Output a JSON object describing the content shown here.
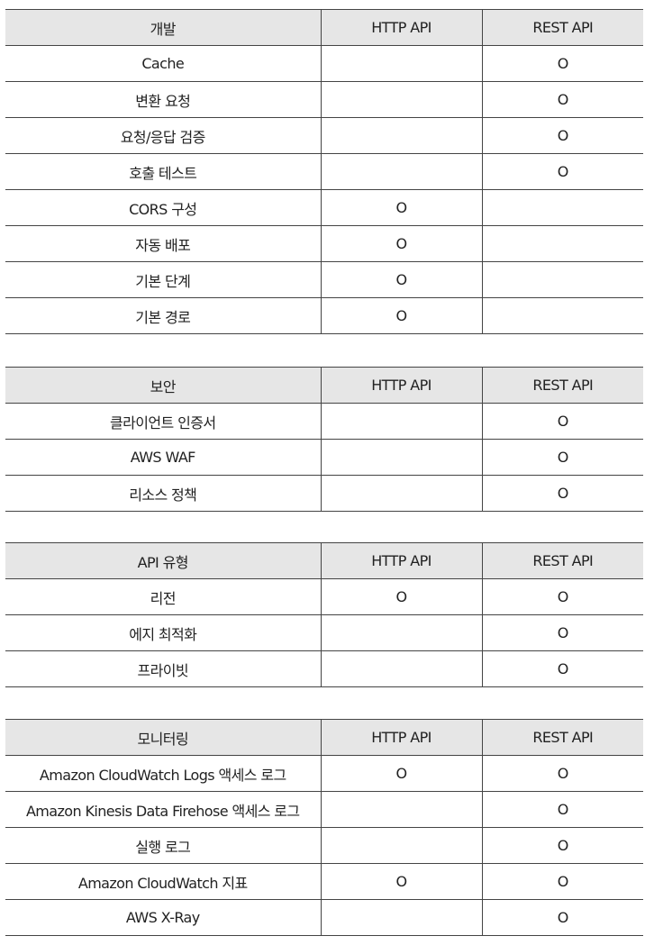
{
  "headers": {
    "http": "HTTP API",
    "rest": "REST API"
  },
  "mark": "O",
  "sections": [
    {
      "title": "개발",
      "rows": [
        {
          "feature": "Cache",
          "http": "",
          "rest": "O"
        },
        {
          "feature": "변환 요청",
          "http": "",
          "rest": "O"
        },
        {
          "feature": "요청/응답 검증",
          "http": "",
          "rest": "O"
        },
        {
          "feature": "호출 테스트",
          "http": "",
          "rest": "O"
        },
        {
          "feature": "CORS 구성",
          "http": "O",
          "rest": ""
        },
        {
          "feature": "자동 배포",
          "http": "O",
          "rest": ""
        },
        {
          "feature": "기본 단계",
          "http": "O",
          "rest": ""
        },
        {
          "feature": "기본 경로",
          "http": "O",
          "rest": ""
        }
      ]
    },
    {
      "title": "보안",
      "rows": [
        {
          "feature": "클라이언트 인증서",
          "http": "",
          "rest": "O"
        },
        {
          "feature": "AWS WAF",
          "http": "",
          "rest": "O"
        },
        {
          "feature": "리소스 정책",
          "http": "",
          "rest": "O"
        }
      ]
    },
    {
      "title": "API 유형",
      "rows": [
        {
          "feature": "리전",
          "http": "O",
          "rest": "O"
        },
        {
          "feature": "에지 최적화",
          "http": "",
          "rest": "O"
        },
        {
          "feature": "프라이빗",
          "http": "",
          "rest": "O"
        }
      ]
    },
    {
      "title": "모니터링",
      "rows": [
        {
          "feature": "Amazon CloudWatch Logs 액세스 로그",
          "http": "O",
          "rest": "O"
        },
        {
          "feature": "Amazon Kinesis Data Firehose 액세스 로그",
          "http": "",
          "rest": "O"
        },
        {
          "feature": "실행 로그",
          "http": "",
          "rest": "O"
        },
        {
          "feature": "Amazon CloudWatch 지표",
          "http": "O",
          "rest": "O"
        },
        {
          "feature": "AWS X-Ray",
          "http": "",
          "rest": "O"
        }
      ]
    }
  ]
}
